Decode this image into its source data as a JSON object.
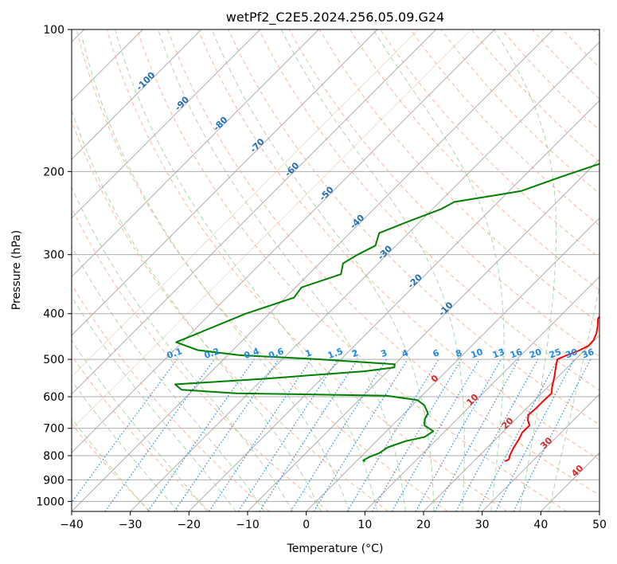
{
  "chart_data": {
    "type": "line",
    "subtype": "skew-T log-P sounding",
    "title": "wetPf2_C2E5.2024.256.05.09.G24",
    "xlabel": "Temperature (°C)",
    "ylabel": "Pressure (hPa)",
    "xlim": [
      -40,
      50
    ],
    "ylim_hpa": [
      1050,
      100
    ],
    "x_ticks": [
      -40,
      -30,
      -20,
      -10,
      0,
      10,
      20,
      30,
      40,
      50
    ],
    "x_tick_labels": [
      "−40",
      "−30",
      "−20",
      "−10",
      "0",
      "10",
      "20",
      "30",
      "40",
      "50"
    ],
    "y_ticks": [
      100,
      200,
      300,
      400,
      500,
      600,
      700,
      800,
      900,
      1000
    ],
    "y_tick_labels": [
      "100",
      "200",
      "300",
      "400",
      "500",
      "600",
      "700",
      "800",
      "900",
      "1000"
    ],
    "colors": {
      "temperature": "#ff0000",
      "dewpoint": "#008000",
      "isotherm": "#999999",
      "dry_adiabat": "#ffaa88",
      "moist_adiabat": "#88cc88",
      "mixing_ratio": "#1e88e5",
      "isotherm_label_blue": "#1f6eb5",
      "isotherm_label_red": "#d62728",
      "background_curve": "#d2b48c"
    },
    "series": [
      {
        "name": "Temperature",
        "values": [
          [
            101,
            1.0
          ],
          [
            110,
            0.5
          ],
          [
            120,
            0.3
          ],
          [
            130,
            0.8
          ],
          [
            140,
            1.7
          ],
          [
            150,
            3.0
          ],
          [
            160,
            4.8
          ],
          [
            170,
            6.5
          ],
          [
            178,
            6.7
          ],
          [
            187,
            6.2
          ],
          [
            197,
            6.4
          ],
          [
            210,
            7.2
          ],
          [
            225,
            8.0
          ],
          [
            240,
            8.5
          ],
          [
            260,
            9.8
          ],
          [
            280,
            11.2
          ],
          [
            300,
            12.4
          ],
          [
            320,
            13.3
          ],
          [
            345,
            14.6
          ],
          [
            370,
            15.6
          ],
          [
            395,
            16.5
          ],
          [
            410,
            16.9
          ],
          [
            425,
            18.1
          ],
          [
            440,
            19.1
          ],
          [
            455,
            19.8
          ],
          [
            468,
            19.9
          ],
          [
            480,
            19.0
          ],
          [
            492,
            17.6
          ],
          [
            500,
            16.9
          ],
          [
            520,
            18.0
          ],
          [
            545,
            19.4
          ],
          [
            570,
            20.6
          ],
          [
            590,
            21.7
          ],
          [
            615,
            21.6
          ],
          [
            635,
            21.6
          ],
          [
            655,
            21.4
          ],
          [
            672,
            22.2
          ],
          [
            690,
            23.4
          ],
          [
            715,
            23.4
          ],
          [
            740,
            24.0
          ],
          [
            770,
            24.5
          ],
          [
            800,
            25.2
          ],
          [
            815,
            25.7
          ],
          [
            822,
            25.3
          ]
        ]
      },
      {
        "name": "Dewpoint",
        "values": [
          [
            100,
            0.0
          ],
          [
            113,
            -2.0
          ],
          [
            125,
            -4.0
          ],
          [
            133,
            -4.5
          ],
          [
            145,
            -1.5
          ],
          [
            155,
            -5.0
          ],
          [
            170,
            -11.0
          ],
          [
            182,
            -9.0
          ],
          [
            192,
            -9.0
          ],
          [
            205,
            -13.5
          ],
          [
            220,
            -18.0
          ],
          [
            232,
            -27.5
          ],
          [
            240,
            -28.5
          ],
          [
            255,
            -32.0
          ],
          [
            270,
            -35.0
          ],
          [
            287,
            -33.5
          ],
          [
            300,
            -35.0
          ],
          [
            313,
            -36.0
          ],
          [
            330,
            -34.5
          ],
          [
            352,
            -39.0
          ],
          [
            370,
            -38.5
          ],
          [
            400,
            -44.0
          ],
          [
            460,
            -51.0
          ],
          [
            478,
            -46.0
          ],
          [
            490,
            -38.0
          ],
          [
            500,
            -23.5
          ],
          [
            512,
            -10.0
          ],
          [
            520,
            -9.5
          ],
          [
            530,
            -14.0
          ],
          [
            550,
            -30.0
          ],
          [
            565,
            -44.0
          ],
          [
            580,
            -42.0
          ],
          [
            590,
            -32.0
          ],
          [
            597,
            -6.0
          ],
          [
            610,
            0.0
          ],
          [
            625,
            2.0
          ],
          [
            650,
            4.0
          ],
          [
            670,
            4.5
          ],
          [
            690,
            5.5
          ],
          [
            710,
            8.0
          ],
          [
            730,
            7.5
          ],
          [
            745,
            5.0
          ],
          [
            768,
            3.0
          ],
          [
            790,
            2.5
          ],
          [
            805,
            1.5
          ],
          [
            818,
            1.0
          ],
          [
            823,
            1.5
          ]
        ]
      }
    ],
    "isotherm_labels_blue": [
      -100,
      -90,
      -80,
      -70,
      -60,
      -50,
      -40,
      -30,
      -20,
      -10
    ],
    "isotherm_labels_red": [
      0,
      10,
      20,
      30,
      40
    ],
    "mixing_ratio_labels": [
      "0.1",
      "0.2",
      "0.4",
      "0.6",
      "1",
      "1.5",
      "2",
      "3",
      "4",
      "6",
      "8",
      "10",
      "13",
      "16",
      "20",
      "25",
      "30",
      "36"
    ],
    "mixing_ratio_values": [
      0.1,
      0.2,
      0.4,
      0.6,
      1,
      1.5,
      2,
      3,
      4,
      6,
      8,
      10,
      13,
      16,
      20,
      25,
      30,
      36
    ]
  }
}
